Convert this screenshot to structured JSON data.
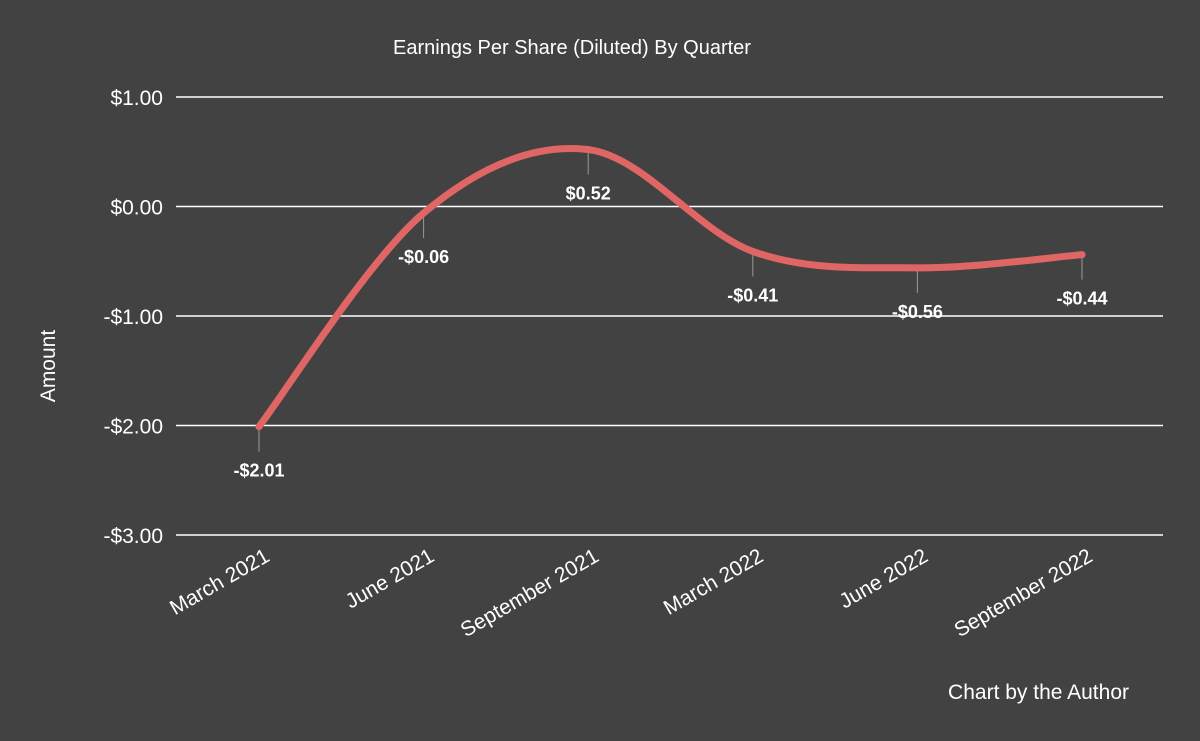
{
  "chart_data": {
    "type": "line",
    "title": "Earnings Per Share (Diluted) By Quarter",
    "ylabel": "Amount",
    "xlabel": "",
    "categories": [
      "March 2021",
      "June 2021",
      "September 2021",
      "March 2022",
      "June 2022",
      "September 2022"
    ],
    "series": [
      {
        "values": [
          -2.01,
          -0.06,
          0.52,
          -0.41,
          -0.56,
          -0.44
        ],
        "labels": [
          "-$2.01",
          "-$0.06",
          "$0.52",
          "-$0.41",
          "-$0.56",
          "-$0.44"
        ],
        "color": "#e06666"
      }
    ],
    "ylim": [
      -3,
      1
    ],
    "yticks": [
      1,
      0,
      -1,
      -2,
      -3
    ],
    "ytick_labels": [
      "$1.00",
      "$0.00",
      "-$1.00",
      "-$2.00",
      "-$3.00"
    ],
    "grid": true,
    "legend": "none",
    "smooth": true
  },
  "credit": "Chart by the Author",
  "colors": {
    "background": "#424242",
    "text": "#ffffff",
    "grid": "#ffffff",
    "series": "#e06666",
    "leader": "#9a9a9a"
  }
}
